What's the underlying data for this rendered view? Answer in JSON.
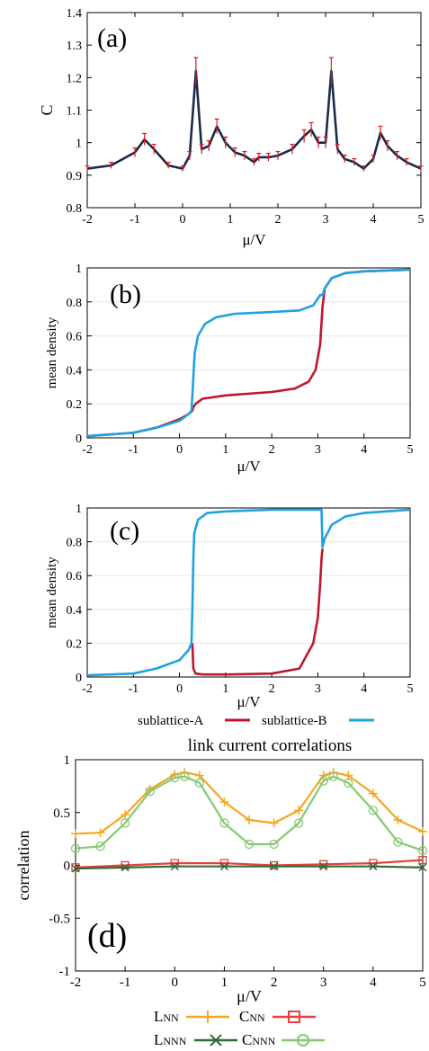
{
  "chart_data": [
    {
      "panel": "(a)",
      "type": "line",
      "xlabel": "μ/V",
      "ylabel": "C",
      "xlim": [
        -2,
        5
      ],
      "ylim": [
        0.8,
        1.4
      ],
      "xticks": [
        -2,
        -1,
        0,
        1,
        2,
        3,
        4,
        5
      ],
      "yticks": [
        "0.8",
        "0.9",
        "1",
        "1.1",
        "1.2",
        "1.3",
        "1.4"
      ],
      "error_bars": true,
      "series": [
        {
          "color": "#1a2a4a",
          "errorbar_color": "#e31a1c",
          "x": [
            -2.0,
            -1.5,
            -1.0,
            -0.8,
            -0.6,
            -0.3,
            0.0,
            0.15,
            0.28,
            0.4,
            0.55,
            0.72,
            0.9,
            1.1,
            1.3,
            1.5,
            1.6,
            1.8,
            2.0,
            2.3,
            2.55,
            2.7,
            2.85,
            3.0,
            3.12,
            3.25,
            3.4,
            3.6,
            3.8,
            4.0,
            4.15,
            4.3,
            4.5,
            4.7,
            5.0
          ],
          "y": [
            0.92,
            0.93,
            0.97,
            1.01,
            0.98,
            0.93,
            0.92,
            0.96,
            1.22,
            0.98,
            0.99,
            1.05,
            1.0,
            0.97,
            0.96,
            0.94,
            0.955,
            0.955,
            0.96,
            0.98,
            1.02,
            1.04,
            1.0,
            1.0,
            1.22,
            0.98,
            0.95,
            0.94,
            0.92,
            0.95,
            1.03,
            0.99,
            0.96,
            0.94,
            0.92
          ]
        }
      ]
    },
    {
      "panel": "(b)",
      "type": "line",
      "xlabel": "μ/V",
      "ylabel": "mean density",
      "xlim": [
        -2,
        5
      ],
      "ylim": [
        0,
        1
      ],
      "xticks": [
        -2,
        -1,
        0,
        1,
        2,
        3,
        4,
        5
      ],
      "yticks": [
        "0",
        "0.2",
        "0.4",
        "0.6",
        "0.8",
        "1"
      ],
      "series": [
        {
          "name": "sublattice-A",
          "color": "#c0172c",
          "x": [
            -2.0,
            -1.0,
            -0.5,
            0.0,
            0.2,
            0.28,
            0.3,
            0.35,
            0.5,
            1.0,
            2.0,
            2.5,
            2.8,
            2.95,
            3.05,
            3.1,
            3.15,
            3.3,
            3.6,
            4.0,
            5.0
          ],
          "y": [
            0.01,
            0.03,
            0.06,
            0.11,
            0.14,
            0.16,
            0.18,
            0.2,
            0.23,
            0.25,
            0.27,
            0.29,
            0.33,
            0.4,
            0.55,
            0.77,
            0.88,
            0.94,
            0.97,
            0.98,
            0.99
          ]
        },
        {
          "name": "sublattice-B",
          "color": "#1fa2e0",
          "x": [
            -2.0,
            -1.0,
            -0.5,
            0.0,
            0.2,
            0.26,
            0.28,
            0.3,
            0.33,
            0.4,
            0.55,
            0.8,
            1.2,
            2.0,
            2.6,
            2.9,
            3.05,
            3.1,
            3.15,
            3.3,
            3.6,
            4.0,
            5.0
          ],
          "y": [
            0.01,
            0.03,
            0.06,
            0.1,
            0.14,
            0.16,
            0.25,
            0.36,
            0.5,
            0.6,
            0.67,
            0.71,
            0.73,
            0.74,
            0.75,
            0.78,
            0.84,
            0.84,
            0.88,
            0.94,
            0.97,
            0.98,
            0.99
          ]
        }
      ]
    },
    {
      "panel": "(c)",
      "type": "line",
      "xlabel": "μ/V",
      "ylabel": "mean density",
      "xlim": [
        -2,
        5
      ],
      "ylim": [
        0,
        1
      ],
      "xticks": [
        -2,
        -1,
        0,
        1,
        2,
        3,
        4,
        5
      ],
      "yticks": [
        "0",
        "0.2",
        "0.4",
        "0.6",
        "0.8",
        "1"
      ],
      "series": [
        {
          "name": "sublattice-A",
          "color": "#c0172c",
          "x": [
            0.28,
            0.3,
            0.35,
            0.5,
            1.0,
            2.0,
            2.6,
            2.9,
            3.0,
            3.05,
            3.08,
            3.1
          ],
          "y": [
            0.2,
            0.05,
            0.02,
            0.015,
            0.015,
            0.02,
            0.05,
            0.2,
            0.35,
            0.55,
            0.7,
            0.76
          ]
        },
        {
          "name": "sublattice-B",
          "color": "#1fa2e0",
          "x": [
            -2.0,
            -1.5,
            -1.0,
            -0.5,
            0.0,
            0.2,
            0.26,
            0.28,
            0.3,
            0.32,
            0.4,
            0.6,
            1.0,
            2.0,
            3.0,
            3.08,
            3.1,
            3.15,
            3.3,
            3.6,
            4.0,
            5.0
          ],
          "y": [
            0.01,
            0.015,
            0.02,
            0.05,
            0.1,
            0.16,
            0.2,
            0.4,
            0.7,
            0.85,
            0.93,
            0.97,
            0.98,
            0.99,
            0.99,
            0.99,
            0.77,
            0.82,
            0.9,
            0.95,
            0.97,
            0.99
          ]
        }
      ]
    },
    {
      "panel": "(d)",
      "type": "line",
      "title": "link current correlations",
      "xlabel": "μ/V",
      "ylabel": "correlation",
      "xlim": [
        -2,
        5
      ],
      "ylim": [
        -1,
        1
      ],
      "xticks": [
        -2,
        -1,
        0,
        1,
        2,
        3,
        4,
        5
      ],
      "yticks": [
        "-1",
        "-0.5",
        "0",
        "0.5",
        "1"
      ],
      "series": [
        {
          "name": "LNN",
          "color": "#f5a623",
          "marker": "plus",
          "x": [
            -2.0,
            -1.5,
            -1.0,
            -0.5,
            0.0,
            0.2,
            0.5,
            1.0,
            1.5,
            2.0,
            2.5,
            3.0,
            3.2,
            3.5,
            4.0,
            4.5,
            5.0
          ],
          "y": [
            0.3,
            0.31,
            0.48,
            0.72,
            0.86,
            0.88,
            0.85,
            0.6,
            0.43,
            0.4,
            0.52,
            0.85,
            0.88,
            0.85,
            0.68,
            0.43,
            0.32
          ]
        },
        {
          "name": "CNN",
          "color": "#e8403c",
          "marker": "square",
          "x": [
            -2.0,
            -1.0,
            0.0,
            1.0,
            2.0,
            3.0,
            4.0,
            5.0
          ],
          "y": [
            -0.02,
            0.0,
            0.02,
            0.02,
            0.0,
            0.01,
            0.02,
            0.05
          ]
        },
        {
          "name": "LNNN",
          "color": "#2e6b3a",
          "marker": "cross",
          "x": [
            -2.0,
            -1.0,
            0.0,
            1.0,
            2.0,
            3.0,
            4.0,
            5.0
          ],
          "y": [
            -0.03,
            -0.02,
            -0.01,
            -0.01,
            -0.01,
            -0.01,
            -0.01,
            -0.02
          ]
        },
        {
          "name": "CNNN",
          "color": "#86c873",
          "marker": "circle",
          "x": [
            -2.0,
            -1.5,
            -1.0,
            -0.5,
            0.0,
            0.2,
            0.5,
            1.0,
            1.5,
            2.0,
            2.5,
            3.0,
            3.2,
            3.5,
            4.0,
            4.5,
            5.0
          ],
          "y": [
            0.16,
            0.18,
            0.4,
            0.7,
            0.83,
            0.84,
            0.78,
            0.4,
            0.2,
            0.2,
            0.4,
            0.8,
            0.84,
            0.78,
            0.52,
            0.22,
            0.14
          ]
        }
      ]
    }
  ],
  "legend_bc": [
    {
      "label": "sublattice-A",
      "color": "#c0172c"
    },
    {
      "label": "sublattice-B",
      "color": "#1fa2e0"
    }
  ],
  "legend_d": [
    {
      "label": "L",
      "sub": "NN",
      "color": "#f5a623",
      "marker": "plus"
    },
    {
      "label": "C",
      "sub": "NN",
      "color": "#e8403c",
      "marker": "square"
    },
    {
      "label": "L",
      "sub": "NNN",
      "color": "#2e6b3a",
      "marker": "cross"
    },
    {
      "label": "C",
      "sub": "NNN",
      "color": "#86c873",
      "marker": "circle"
    }
  ]
}
